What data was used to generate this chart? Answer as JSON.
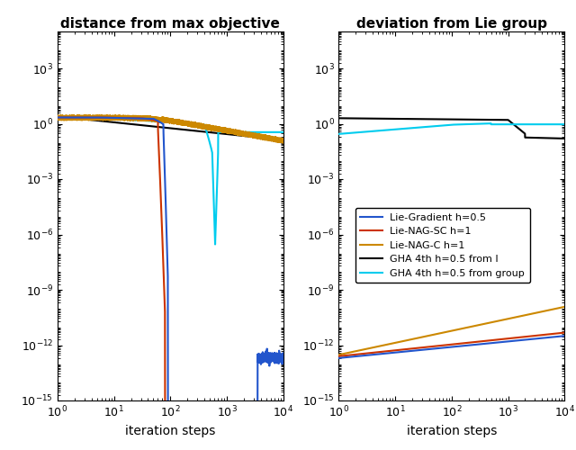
{
  "title_left": "distance from max objective",
  "title_right": "deviation from Lie group",
  "xlabel": "iteration steps",
  "ylim": [
    1e-15,
    100000.0
  ],
  "xlim_left": [
    1,
    10000
  ],
  "xlim_right": [
    1,
    10000
  ],
  "colors": {
    "lie_gradient": "#2255cc",
    "lie_nag_sc": "#cc3300",
    "lie_nag_c": "#cc8800",
    "gha_I": "#000000",
    "gha_group": "#00ccee"
  },
  "legend_labels": [
    "Lie-Gradient h=0.5",
    "Lie-NAG-SC h=1",
    "Lie-NAG-C h=1",
    "GHA 4th h=0.5 from I",
    "GHA 4th h=0.5 from group"
  ],
  "linewidth": 1.5,
  "figsize": [
    6.4,
    5.0
  ],
  "dpi": 100
}
